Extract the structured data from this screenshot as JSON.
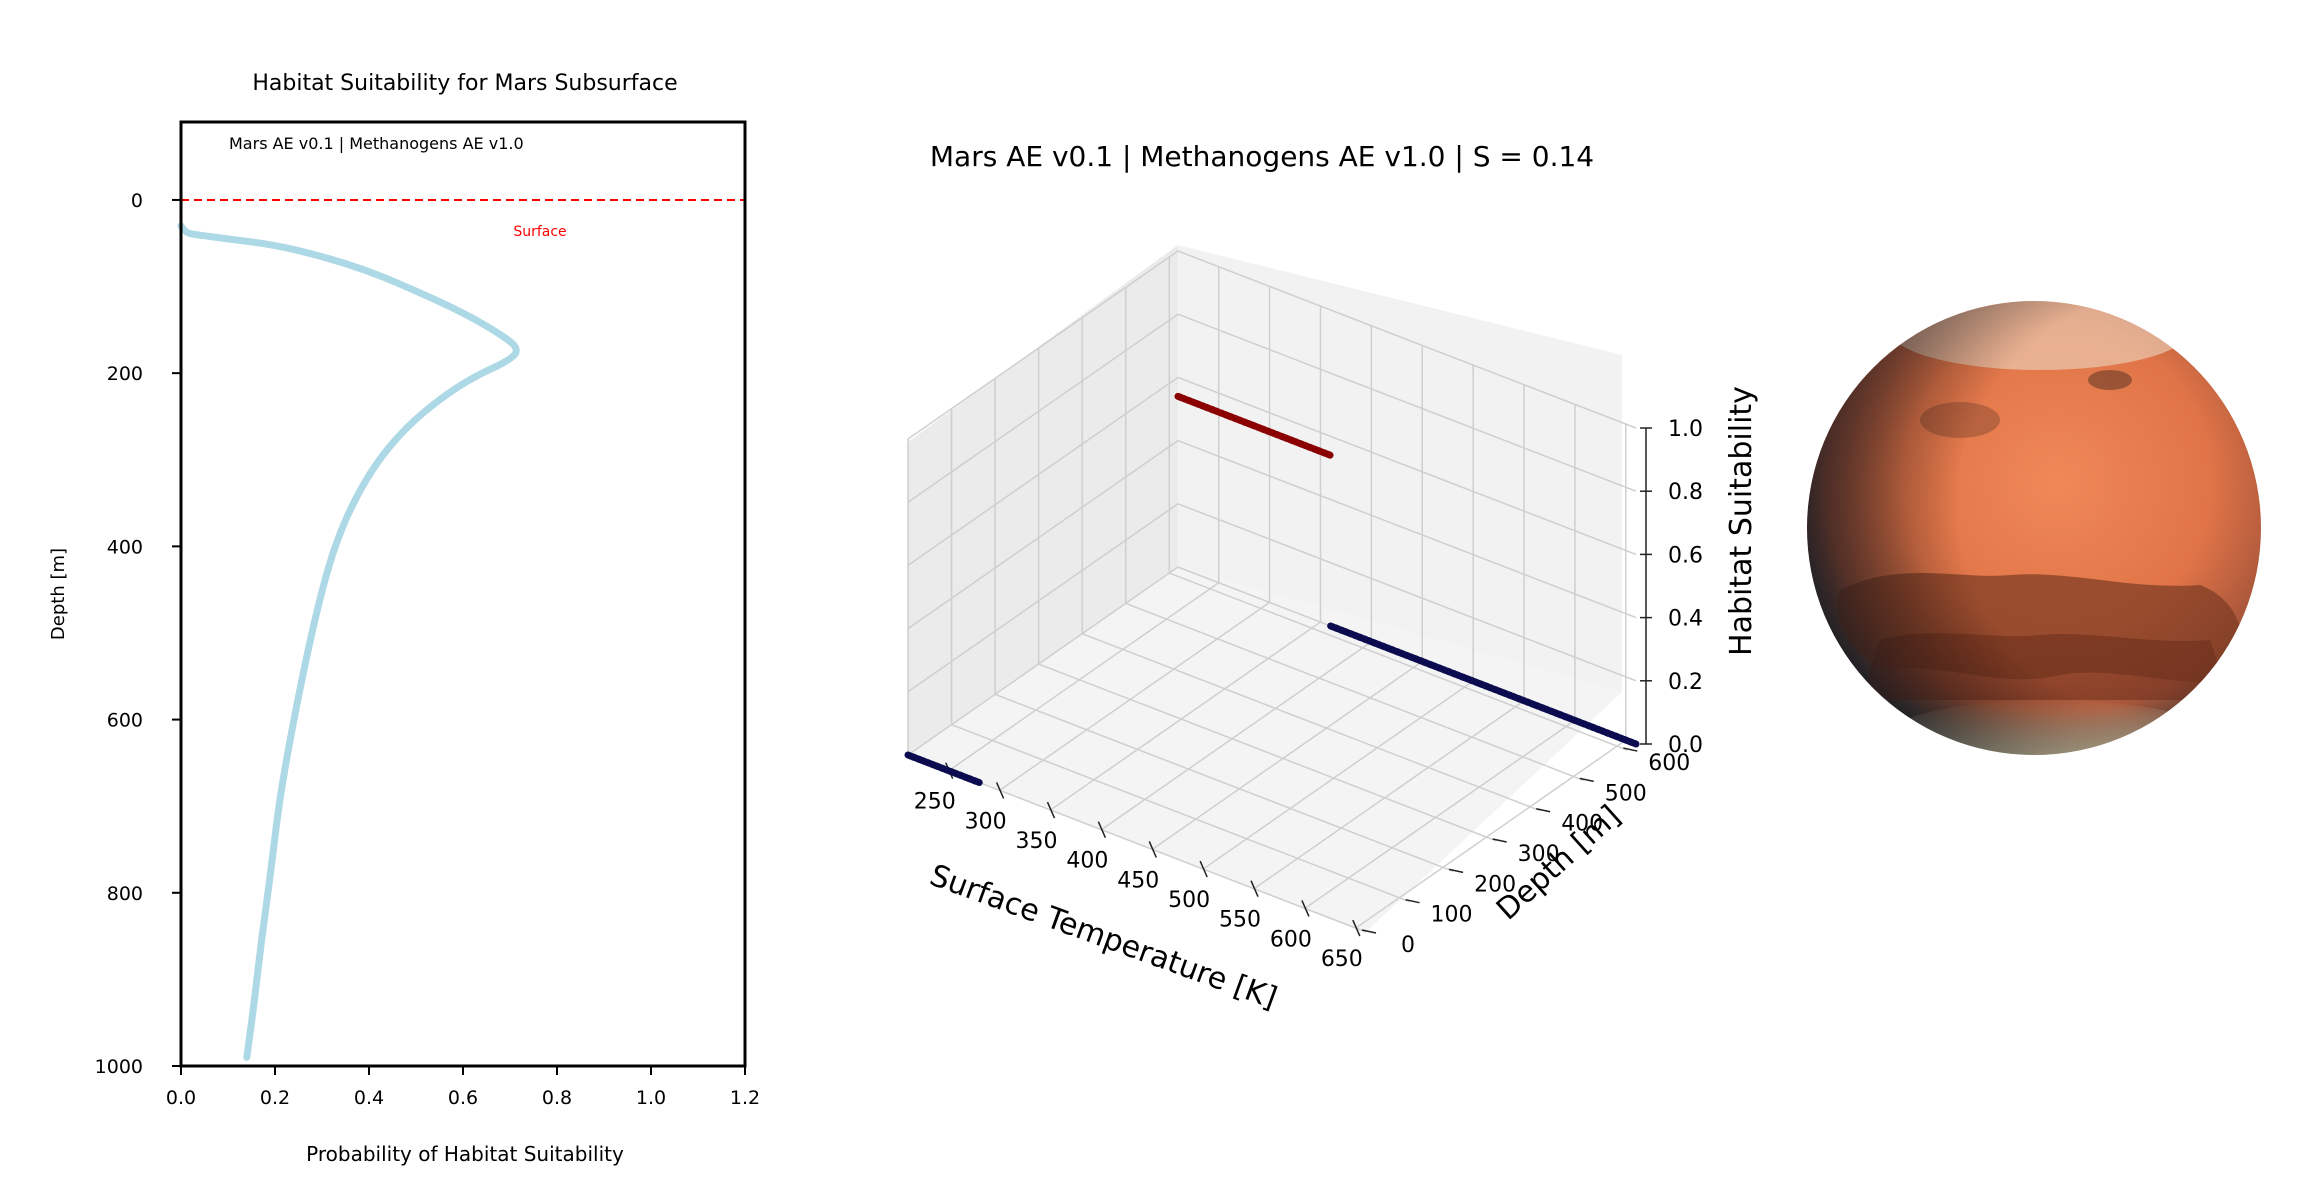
{
  "chart_data": [
    {
      "type": "line",
      "title": "Habitat Suitability for Mars Subsurface",
      "annotation": "Mars AE v0.1 | Methanogens AE v1.0",
      "xlabel": "Probability of Habitat Suitability",
      "ylabel": "Depth [m]",
      "xlim": [
        0.0,
        1.2
      ],
      "ylim": [
        1000,
        -90
      ],
      "xticks": [
        "0.0",
        "0.2",
        "0.4",
        "0.6",
        "0.8",
        "1.0",
        "1.2"
      ],
      "yticks": [
        "0",
        "200",
        "400",
        "600",
        "800",
        "1000"
      ],
      "ytick_values": [
        0,
        200,
        400,
        600,
        800,
        1000
      ],
      "xtick_values": [
        0.0,
        0.2,
        0.4,
        0.6,
        0.8,
        1.0,
        1.2
      ],
      "reference_line": {
        "y": 0,
        "label": "Surface",
        "color": "#ff0000",
        "style": "dashed"
      },
      "series": [
        {
          "color": "#add8e6",
          "points": [
            [
              0.0,
              30
            ],
            [
              0.01,
              38
            ],
            [
              0.03,
              40
            ],
            [
              0.1,
              45
            ],
            [
              0.2,
              52
            ],
            [
              0.3,
              65
            ],
            [
              0.4,
              82
            ],
            [
              0.5,
              105
            ],
            [
              0.6,
              130
            ],
            [
              0.68,
              155
            ],
            [
              0.72,
              172
            ],
            [
              0.7,
              185
            ],
            [
              0.62,
              205
            ],
            [
              0.55,
              230
            ],
            [
              0.48,
              262
            ],
            [
              0.42,
              300
            ],
            [
              0.37,
              345
            ],
            [
              0.33,
              395
            ],
            [
              0.3,
              450
            ],
            [
              0.27,
              520
            ],
            [
              0.24,
              600
            ],
            [
              0.21,
              690
            ],
            [
              0.19,
              780
            ],
            [
              0.17,
              860
            ],
            [
              0.155,
              930
            ],
            [
              0.14,
              990
            ]
          ]
        }
      ]
    },
    {
      "type": "scatter",
      "title": "Mars AE v0.1 | Methanogens AE v1.0 | S = 0.14",
      "xlabel": "Surface Temperature [K]",
      "ylabel": "Depth [m]",
      "zlabel": "Habitat Suitability",
      "xticks": [
        "250",
        "300",
        "350",
        "400",
        "450",
        "500",
        "550",
        "600",
        "650"
      ],
      "yticks": [
        "0",
        "100",
        "200",
        "300",
        "400",
        "500",
        "600"
      ],
      "zticks": [
        "0.0",
        "0.2",
        "0.4",
        "0.6",
        "0.8",
        "1.0"
      ],
      "xlim": [
        210,
        660
      ],
      "ylim": [
        0,
        620
      ],
      "zlim": [
        0,
        1
      ],
      "grid": true,
      "series": [
        {
          "color": "#8b0000",
          "points": [
            [
              210,
              620,
              0.54
            ],
            [
              360,
              620,
              0.54
            ]
          ]
        },
        {
          "color": "#0b0b50",
          "points": [
            [
              210,
              0,
              0.0
            ],
            [
              280,
              0,
              0.0
            ]
          ]
        },
        {
          "color": "#0b0b50",
          "points": [
            [
              360,
              620,
              0.0
            ],
            [
              660,
              620,
              0.0
            ]
          ]
        }
      ]
    }
  ]
}
